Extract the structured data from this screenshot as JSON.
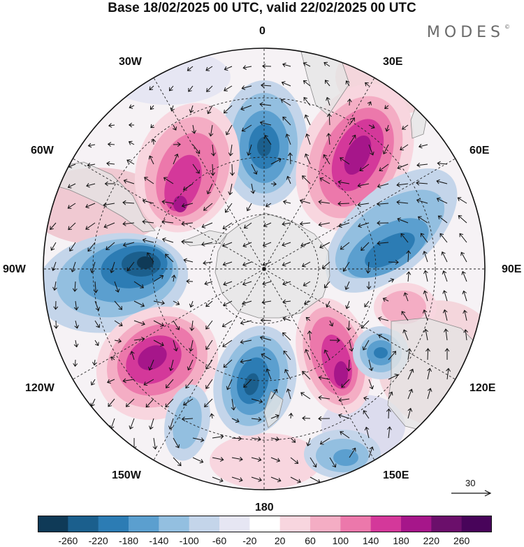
{
  "title": "Base 18/02/2025 00 UTC, valid 22/02/2025 00 UTC",
  "brand": "MODES",
  "brand_mark": "©",
  "longitude_labels": {
    "l0": "0",
    "l30e": "30E",
    "l60e": "60E",
    "l90e": "90E",
    "l120e": "120E",
    "l150e": "150E",
    "l180": "180",
    "l150w": "150W",
    "l120w": "120W",
    "l90w": "90W",
    "l60w": "60W",
    "l30w": "30W"
  },
  "vector_reference": "30",
  "colorbar": {
    "ticks": [
      "-260",
      "-220",
      "-180",
      "-140",
      "-100",
      "-60",
      "-20",
      "20",
      "60",
      "100",
      "140",
      "180",
      "220",
      "260"
    ],
    "colors": [
      "#0f3a57",
      "#1b5f8d",
      "#2c7cb4",
      "#5b9fcf",
      "#93bfe0",
      "#c4d5ea",
      "#e6e6f3",
      "#ffffff",
      "#f8d6df",
      "#f4adc4",
      "#ec78ab",
      "#d4389a",
      "#a6168a",
      "#6b0f6b",
      "#48045a"
    ]
  },
  "colors": {
    "land": "#e4e4e4",
    "coast": "#8a8a8a",
    "grid": "#222222"
  },
  "icons": [
    "vector-arrow-icon"
  ]
}
